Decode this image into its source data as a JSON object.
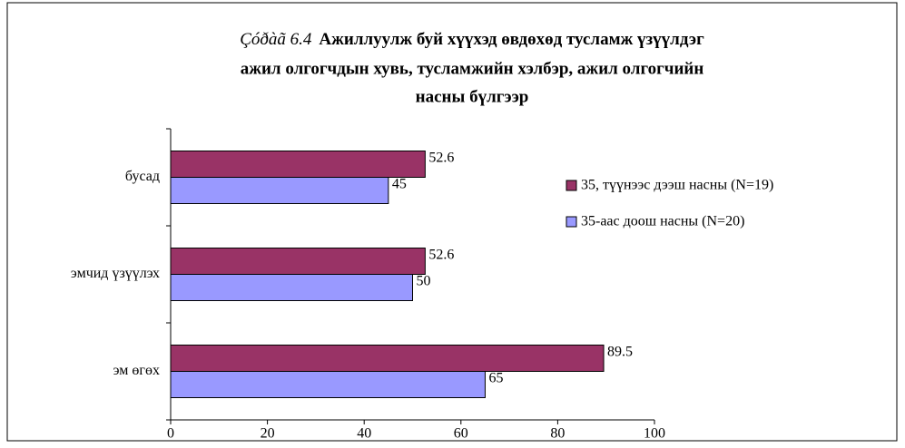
{
  "chart_data": {
    "type": "hbar",
    "figure_label": "Çóðàã 6.4",
    "title": [
      "Ажиллуулж буй хүүхэд өвдөхөд тусламж үзүүлдэг",
      "ажил олгогчдын хувь, тусламжийн хэлбэр, ажил олгогчийн",
      "насны бүлгээр"
    ],
    "categories": [
      "эм өгөх",
      "эмчид үзүүлэх",
      "бусад"
    ],
    "series": [
      {
        "name": "35, түүнээс дээш насны (N=19)",
        "color": "#993366",
        "values": [
          89.5,
          52.6,
          52.6
        ]
      },
      {
        "name": "35-аас доош насны (N=20)",
        "color": "#9999ff",
        "values": [
          65,
          50,
          45
        ]
      }
    ],
    "xlim": [
      0,
      100
    ],
    "xticks": [
      0,
      20,
      40,
      60,
      80,
      100
    ],
    "grid": false,
    "legend": "right"
  }
}
